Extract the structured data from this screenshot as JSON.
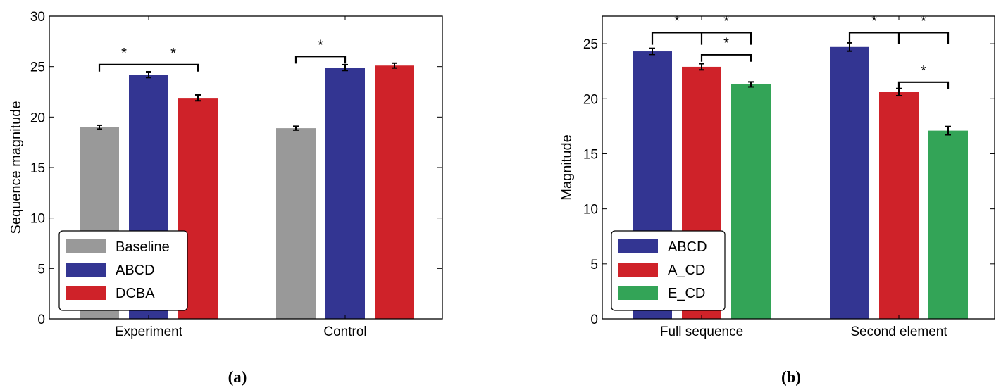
{
  "chart_data": [
    {
      "type": "bar",
      "panel_label": "(a)",
      "ylabel": "Sequence magnitude",
      "ylim": [
        0,
        30
      ],
      "yticks": [
        0,
        5,
        10,
        15,
        20,
        25,
        30
      ],
      "categories": [
        "Experiment",
        "Control"
      ],
      "legend": {
        "placement": "lower-left"
      },
      "series": [
        {
          "name": "Baseline",
          "color": "#999999",
          "values": [
            19.0,
            18.9
          ],
          "errors": [
            0.05,
            0.05
          ]
        },
        {
          "name": "ABCD",
          "color": "#333592",
          "values": [
            24.2,
            24.9
          ],
          "errors": [
            0.15,
            0.15
          ]
        },
        {
          "name": "DCBA",
          "color": "#cf2229",
          "values": [
            21.9,
            25.1
          ],
          "errors": [
            0.15,
            0.1
          ]
        }
      ],
      "significance": [
        {
          "category": 0,
          "from": 0,
          "to": 2,
          "level": 25.2,
          "stars": [
            "*",
            "*"
          ],
          "targets": [
            1,
            2
          ]
        },
        {
          "category": 1,
          "from": 0,
          "to": 1,
          "level": 26.0,
          "stars": [
            "*"
          ],
          "targets": [
            1
          ]
        }
      ]
    },
    {
      "type": "bar",
      "panel_label": "(b)",
      "ylabel": "Magnitude",
      "ylim": [
        0,
        27.5
      ],
      "yticks": [
        0,
        5,
        10,
        15,
        20,
        25
      ],
      "categories": [
        "Full sequence",
        "Second element"
      ],
      "legend": {
        "placement": "lower-left"
      },
      "series": [
        {
          "name": "ABCD",
          "color": "#333592",
          "values": [
            24.3,
            24.7
          ],
          "errors": [
            0.15,
            0.25
          ]
        },
        {
          "name": "A_CD",
          "color": "#cf2229",
          "values": [
            22.9,
            20.6
          ],
          "errors": [
            0.15,
            0.2
          ]
        },
        {
          "name": "E_CD",
          "color": "#33a457",
          "values": [
            21.3,
            17.1
          ],
          "errors": [
            0.1,
            0.25
          ]
        }
      ],
      "significance": [
        {
          "category": 0,
          "from": 0,
          "to": 2,
          "level": 26.0,
          "drops": [
            24.9,
            24.9
          ],
          "stars": [
            "*",
            "*"
          ],
          "targets": [
            1,
            2
          ]
        },
        {
          "category": 0,
          "from": 1,
          "to": 2,
          "level": 24.0,
          "stars": [
            "*"
          ],
          "targets": [
            2
          ]
        },
        {
          "category": 1,
          "from": 0,
          "to": 2,
          "level": 26.0,
          "drops": [
            25.0,
            25.0
          ],
          "stars": [
            "*",
            "*"
          ],
          "targets": [
            1,
            2
          ]
        },
        {
          "category": 1,
          "from": 1,
          "to": 2,
          "level": 21.5,
          "stars": [
            "*"
          ],
          "targets": [
            2
          ]
        }
      ]
    }
  ]
}
